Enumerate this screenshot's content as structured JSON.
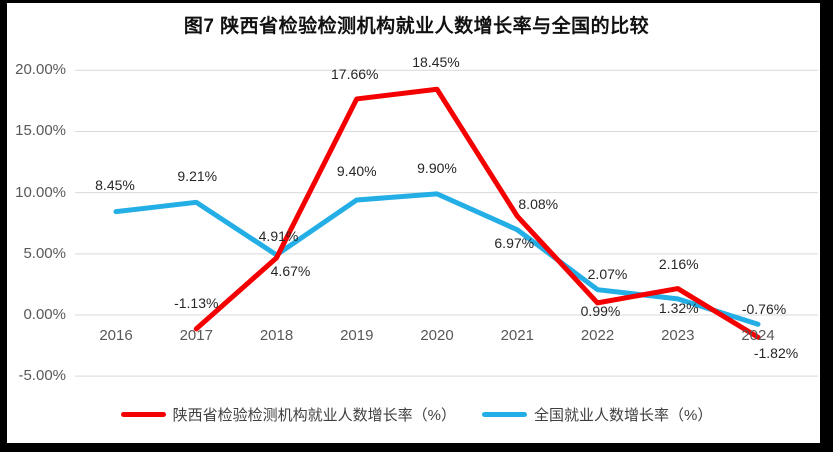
{
  "title": "图7 陕西省检验检测机构就业人数增长率与全国的比较",
  "colors": {
    "shaanxi_line": "#f40000",
    "national_line": "#24aee6",
    "gridline": "#d9d9d9",
    "axis_text": "#595959",
    "data_label_text": "#262626",
    "frame": "#000000",
    "background": "#ffffff"
  },
  "chart_data": {
    "type": "line",
    "categories": [
      "2016",
      "2017",
      "2018",
      "2019",
      "2020",
      "2021",
      "2022",
      "2023",
      "2024"
    ],
    "series": [
      {
        "name": "陕西省检验检测机构就业人数增长率（%）",
        "color_key": "shaanxi_line",
        "values": [
          null,
          -1.13,
          4.67,
          17.66,
          18.45,
          8.08,
          0.99,
          2.16,
          -1.82
        ],
        "labels": [
          null,
          "-1.13%",
          "4.67%",
          "17.66%",
          "18.45%",
          "8.08%",
          "0.99%",
          "2.16%",
          "-1.82%"
        ]
      },
      {
        "name": "全国就业人数增长率（%）",
        "color_key": "national_line",
        "values": [
          8.45,
          9.21,
          4.91,
          9.4,
          9.9,
          6.97,
          2.07,
          1.32,
          -0.76
        ],
        "labels": [
          "8.45%",
          "9.21%",
          "4.91%",
          "9.40%",
          "9.90%",
          "6.97%",
          "2.07%",
          "1.32%",
          "-0.76%"
        ]
      }
    ],
    "y_ticks": [
      {
        "label": "20.00%",
        "value": 20
      },
      {
        "label": "15.00%",
        "value": 15
      },
      {
        "label": "10.00%",
        "value": 10
      },
      {
        "label": "5.00%",
        "value": 5
      },
      {
        "label": "0.00%",
        "value": 0
      },
      {
        "label": "-5.00%",
        "value": -5
      }
    ],
    "ylim": [
      -5,
      20
    ],
    "grid": true,
    "legend_position": "bottom"
  }
}
